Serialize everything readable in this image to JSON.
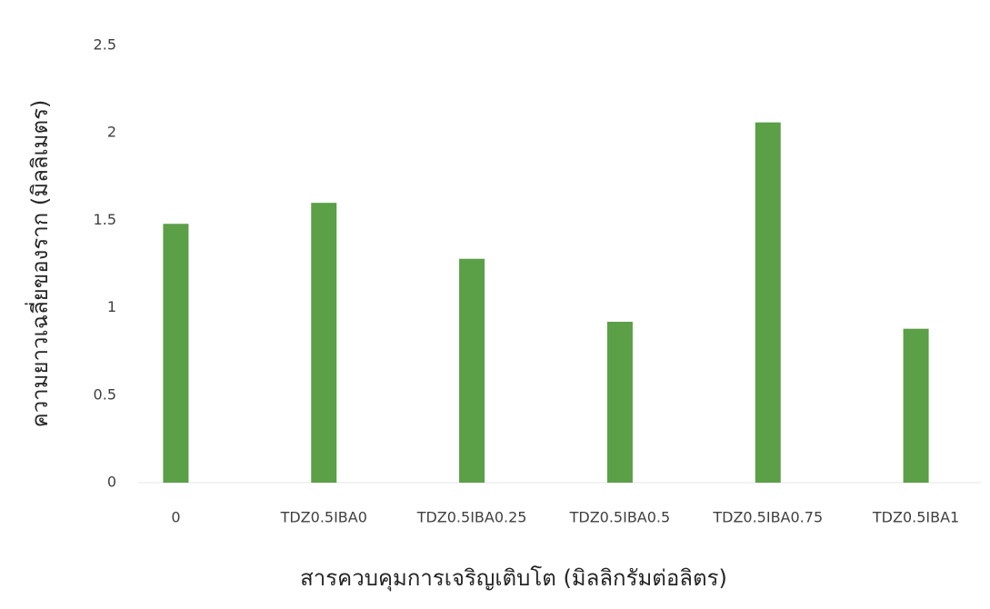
{
  "chart_data": {
    "type": "bar",
    "x_label": "สารควบคุมการเจริญเติบโต (มิลลิกรัมต่อลิตร)",
    "y_label": "ความยาวเฉลี่ยของราก (มิลลิเมตร)",
    "categories": [
      "0",
      "TDZ0.5IBA0",
      "TDZ0.5IBA0.25",
      "TDZ0.5IBA0.5",
      "TDZ0.5IBA0.75",
      "TDZ0.5IBA1"
    ],
    "values": [
      1.48,
      1.6,
      1.28,
      0.92,
      2.06,
      0.88
    ],
    "color": "#5b9f47",
    "ylim": [
      0,
      2.5
    ],
    "yticks": [
      0,
      0.5,
      1,
      1.5,
      2,
      2.5
    ],
    "grid": false
  }
}
